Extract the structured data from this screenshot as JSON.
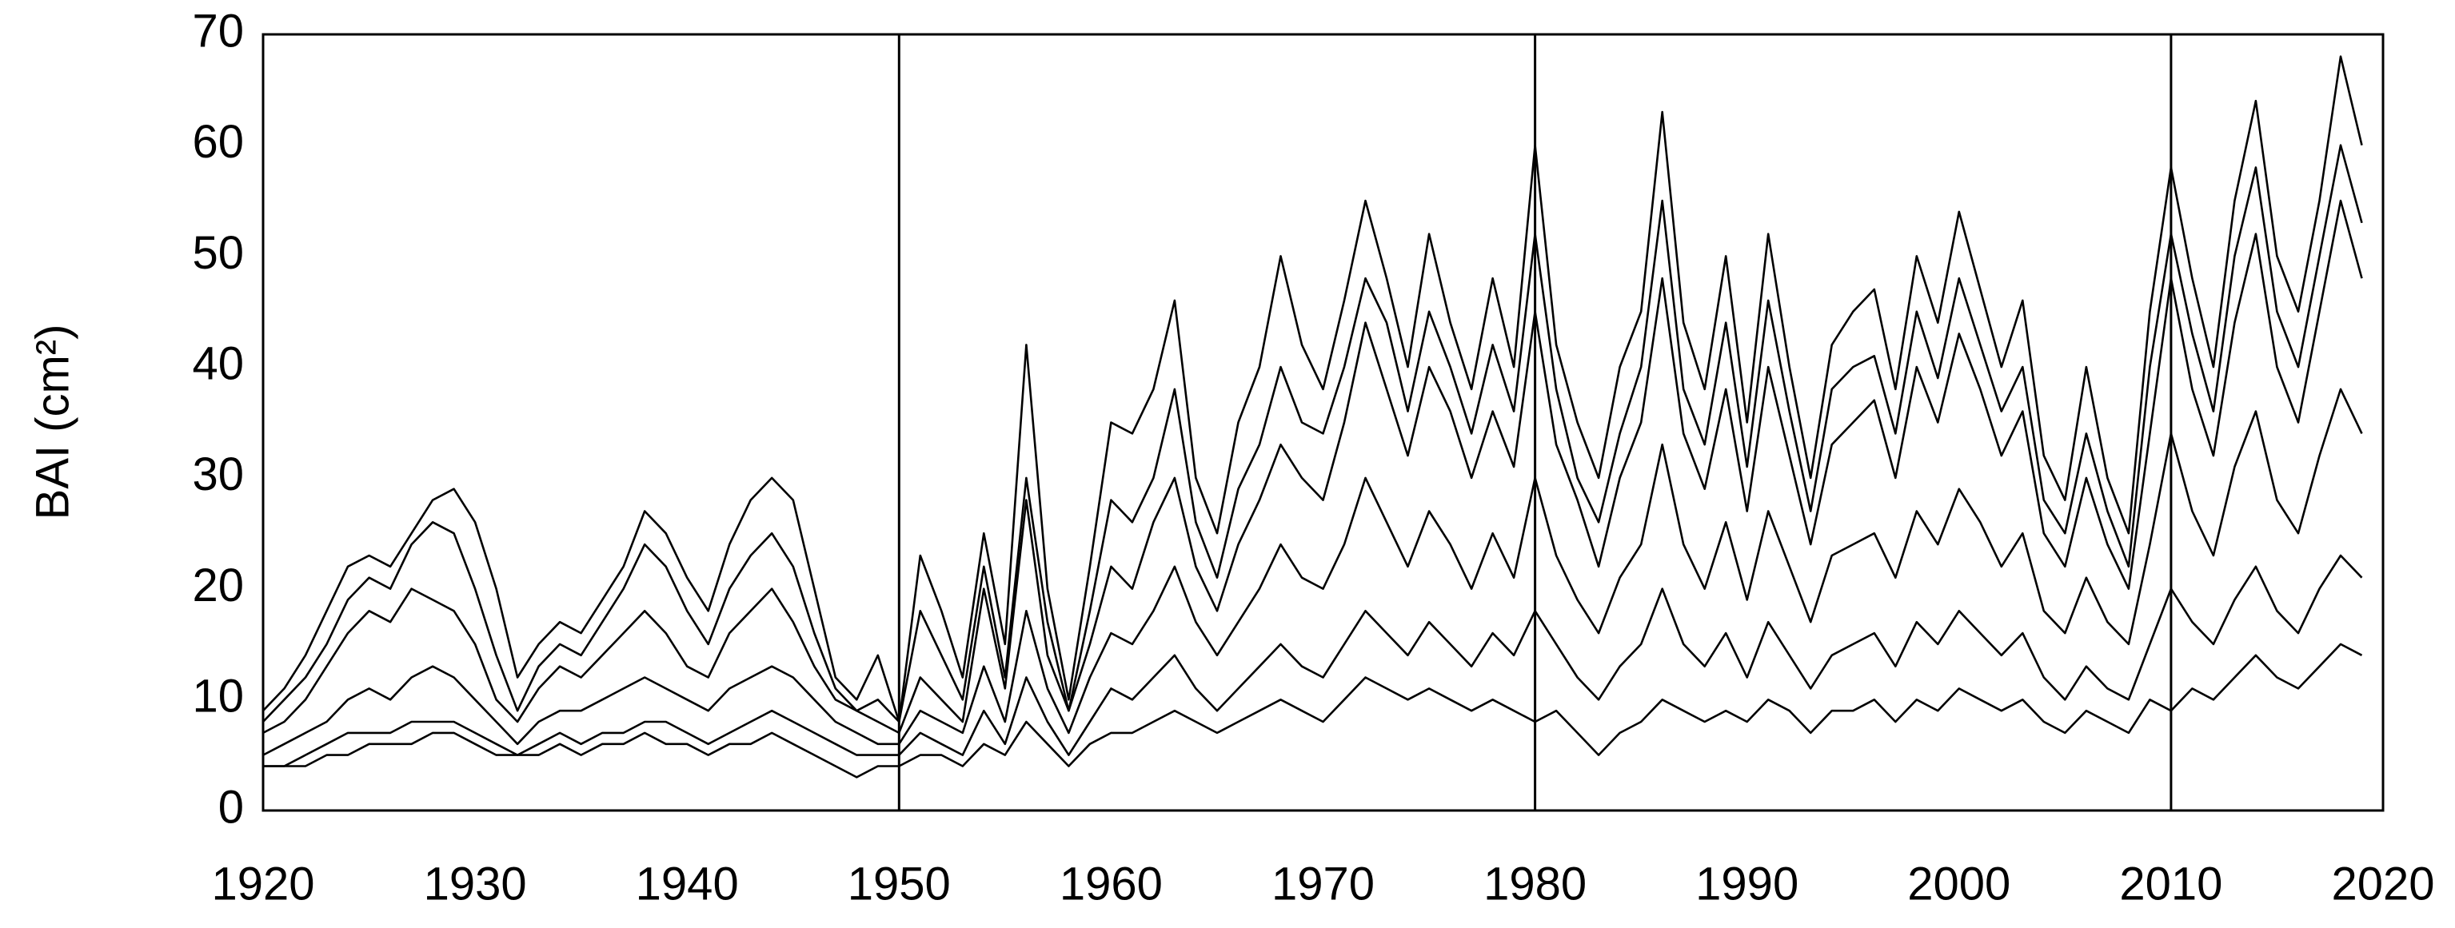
{
  "chart_data": {
    "type": "line",
    "y_label": "BAI (cm²)",
    "x": [
      1920,
      1921,
      1922,
      1923,
      1924,
      1925,
      1926,
      1927,
      1928,
      1929,
      1930,
      1931,
      1932,
      1933,
      1934,
      1935,
      1936,
      1937,
      1938,
      1939,
      1940,
      1941,
      1942,
      1943,
      1944,
      1945,
      1946,
      1947,
      1948,
      1949,
      1950,
      1951,
      1952,
      1953,
      1954,
      1955,
      1956,
      1957,
      1958,
      1959,
      1960,
      1961,
      1962,
      1963,
      1964,
      1965,
      1966,
      1967,
      1968,
      1969,
      1970,
      1971,
      1972,
      1973,
      1974,
      1975,
      1976,
      1977,
      1978,
      1979,
      1980,
      1981,
      1982,
      1983,
      1984,
      1985,
      1986,
      1987,
      1988,
      1989,
      1990,
      1991,
      1992,
      1993,
      1994,
      1995,
      1996,
      1997,
      1998,
      1999,
      2000,
      2001,
      2002,
      2003,
      2004,
      2005,
      2006,
      2007,
      2008,
      2009,
      2010,
      2011,
      2012,
      2013,
      2014,
      2015,
      2016,
      2017,
      2018,
      2019
    ],
    "series": [
      {
        "color": "#000000",
        "values": [
          9,
          11,
          14,
          18,
          22,
          23,
          22,
          25,
          28,
          29,
          26,
          20,
          12,
          15,
          17,
          16,
          19,
          22,
          27,
          25,
          21,
          18,
          24,
          28,
          30,
          28,
          20,
          12,
          10,
          14,
          8,
          23,
          18,
          12,
          25,
          15,
          42,
          20,
          10,
          22,
          35,
          34,
          38,
          46,
          30,
          25,
          35,
          40,
          50,
          42,
          38,
          46,
          55,
          48,
          40,
          52,
          44,
          38,
          48,
          40,
          60,
          42,
          35,
          30,
          40,
          45,
          63,
          44,
          38,
          50,
          35,
          52,
          40,
          30,
          42,
          45,
          47,
          38,
          50,
          44,
          54,
          47,
          40,
          46,
          32,
          28,
          40,
          30,
          25,
          45,
          58,
          48,
          40,
          55,
          64,
          50,
          45,
          55,
          68,
          60
        ]
      },
      {
        "color": "#000000",
        "values": [
          7,
          8,
          10,
          13,
          16,
          18,
          17,
          20,
          19,
          18,
          15,
          10,
          8,
          11,
          13,
          12,
          14,
          16,
          18,
          16,
          13,
          12,
          16,
          18,
          20,
          17,
          13,
          10,
          9,
          8,
          7,
          12,
          10,
          8,
          20,
          11,
          28,
          14,
          9,
          15,
          22,
          20,
          26,
          30,
          22,
          18,
          24,
          28,
          33,
          30,
          28,
          35,
          44,
          38,
          32,
          40,
          36,
          30,
          36,
          31,
          45,
          33,
          28,
          22,
          30,
          35,
          48,
          34,
          29,
          38,
          27,
          40,
          32,
          24,
          33,
          35,
          37,
          30,
          40,
          35,
          43,
          38,
          32,
          36,
          25,
          22,
          30,
          24,
          20,
          34,
          48,
          38,
          32,
          44,
          52,
          40,
          35,
          45,
          55,
          48
        ]
      },
      {
        "color": "#000000",
        "values": [
          5,
          6,
          7,
          8,
          10,
          11,
          10,
          12,
          13,
          12,
          10,
          8,
          6,
          8,
          9,
          9,
          10,
          11,
          12,
          11,
          10,
          9,
          11,
          12,
          13,
          12,
          10,
          8,
          7,
          6,
          6,
          9,
          8,
          7,
          13,
          8,
          18,
          11,
          7,
          12,
          16,
          15,
          18,
          22,
          17,
          14,
          17,
          20,
          24,
          21,
          20,
          24,
          30,
          26,
          22,
          27,
          24,
          20,
          25,
          21,
          30,
          23,
          19,
          16,
          21,
          24,
          33,
          24,
          20,
          26,
          19,
          27,
          22,
          17,
          23,
          24,
          25,
          21,
          27,
          24,
          29,
          26,
          22,
          25,
          18,
          16,
          21,
          17,
          15,
          24,
          34,
          27,
          23,
          31,
          36,
          28,
          25,
          32,
          38,
          34
        ]
      },
      {
        "color": "#000000",
        "values": [
          4,
          4,
          5,
          6,
          7,
          7,
          7,
          8,
          8,
          8,
          7,
          6,
          5,
          6,
          7,
          6,
          7,
          7,
          8,
          8,
          7,
          6,
          7,
          8,
          9,
          8,
          7,
          6,
          5,
          5,
          5,
          7,
          6,
          5,
          9,
          6,
          12,
          8,
          5,
          8,
          11,
          10,
          12,
          14,
          11,
          9,
          11,
          13,
          15,
          13,
          12,
          15,
          18,
          16,
          14,
          17,
          15,
          13,
          16,
          14,
          18,
          15,
          12,
          10,
          13,
          15,
          20,
          15,
          13,
          16,
          12,
          17,
          14,
          11,
          14,
          15,
          16,
          13,
          17,
          15,
          18,
          16,
          14,
          16,
          12,
          10,
          13,
          11,
          10,
          15,
          20,
          17,
          15,
          19,
          22,
          18,
          16,
          20,
          23,
          21
        ]
      },
      {
        "color": "#000000",
        "values": [
          4,
          4,
          4,
          5,
          5,
          6,
          6,
          6,
          7,
          7,
          6,
          5,
          5,
          5,
          6,
          5,
          6,
          6,
          7,
          6,
          6,
          5,
          6,
          6,
          7,
          6,
          5,
          4,
          3,
          4,
          4,
          5,
          5,
          4,
          6,
          5,
          8,
          6,
          4,
          6,
          7,
          7,
          8,
          9,
          8,
          7,
          8,
          9,
          10,
          9,
          8,
          10,
          12,
          11,
          10,
          11,
          10,
          9,
          10,
          9,
          8,
          9,
          7,
          5,
          7,
          8,
          10,
          9,
          8,
          9,
          8,
          10,
          9,
          7,
          9,
          9,
          10,
          8,
          10,
          9,
          11,
          10,
          9,
          10,
          8,
          7,
          9,
          8,
          7,
          10,
          9,
          11,
          10,
          12,
          14,
          12,
          11,
          13,
          15,
          14
        ]
      },
      {
        "color": "#000000",
        "values": [
          8,
          10,
          12,
          15,
          19,
          21,
          20,
          24,
          26,
          25,
          20,
          14,
          9,
          13,
          15,
          14,
          17,
          20,
          24,
          22,
          18,
          15,
          20,
          23,
          25,
          22,
          16,
          11,
          9,
          10,
          8,
          18,
          14,
          10,
          22,
          12,
          30,
          17,
          9,
          18,
          28,
          26,
          30,
          38,
          26,
          21,
          29,
          33,
          40,
          35,
          34,
          40,
          48,
          44,
          36,
          45,
          40,
          34,
          42,
          36,
          52,
          38,
          30,
          26,
          34,
          40,
          55,
          38,
          33,
          44,
          31,
          46,
          36,
          27,
          38,
          40,
          41,
          34,
          45,
          39,
          48,
          42,
          36,
          40,
          28,
          25,
          34,
          27,
          22,
          40,
          52,
          43,
          36,
          50,
          58,
          45,
          40,
          50,
          60,
          53
        ]
      }
    ],
    "xlim": [
      1920,
      2020
    ],
    "ylim": [
      0,
      70
    ],
    "xticks": [
      1920,
      1930,
      1940,
      1950,
      1960,
      1970,
      1980,
      1990,
      2000,
      2010,
      2020
    ],
    "yticks": [
      0,
      10,
      20,
      30,
      40,
      50,
      60,
      70
    ],
    "vlines": [
      1950,
      1980,
      2010
    ],
    "grid": false
  }
}
